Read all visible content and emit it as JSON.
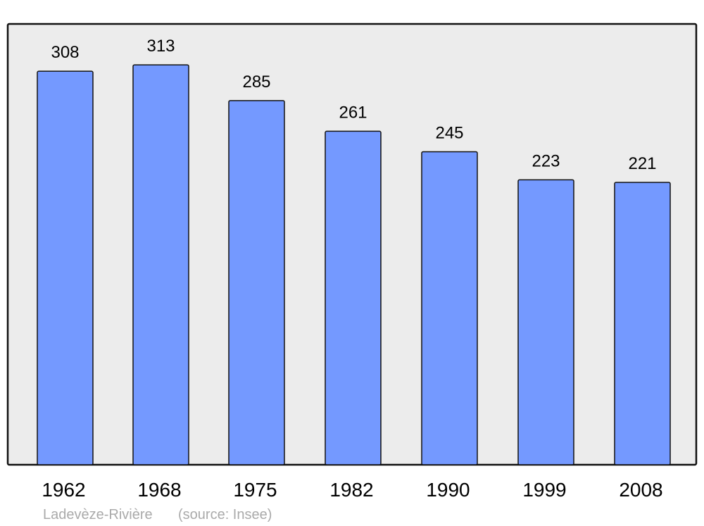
{
  "chart_data": {
    "type": "bar",
    "title": "",
    "xlabel": "",
    "ylabel": "",
    "categories": [
      "1962",
      "1968",
      "1975",
      "1982",
      "1990",
      "1999",
      "2008"
    ],
    "values": [
      308,
      313,
      285,
      261,
      245,
      223,
      221
    ],
    "data_labels": [
      "308",
      "313",
      "285",
      "261",
      "245",
      "223",
      "221"
    ],
    "ylim": [
      0,
      345
    ],
    "grid": false,
    "legend": "none",
    "bar_color": "#7499ff",
    "plot_background": "#ececec"
  },
  "footer": {
    "place": "Ladevèze-Rivière",
    "source": "(source: Insee)"
  }
}
